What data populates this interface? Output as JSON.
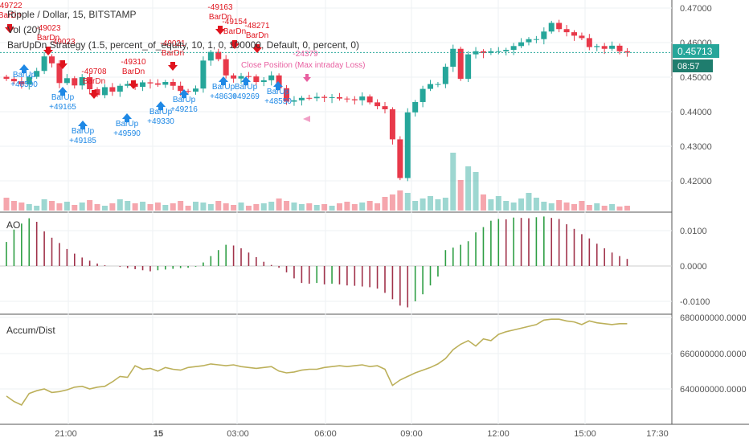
{
  "header": {
    "symbol": "Ripple / Dollar, 15, BITSTAMP",
    "vol": "Vol (20)",
    "strategy": "BarUpDn Strategy (1.5, percent_of_equity, 10, 1, 0, 100000, Default, 0, percent, 0)"
  },
  "price_axis": {
    "labels": [
      "0.47000",
      "0.46000",
      "0.45000",
      "0.44000",
      "0.43000",
      "0.42000"
    ]
  },
  "last_price": {
    "value": "0.45713",
    "countdown": "08:57"
  },
  "ao": {
    "title": "AO",
    "labels": [
      "0.0100",
      "0.0000",
      "-0.0100"
    ]
  },
  "ad": {
    "title": "Accum/Dist",
    "labels": [
      "680000000.0000",
      "660000000.0000",
      "640000000.0000"
    ]
  },
  "time_axis": {
    "labels": [
      "21:00",
      "15",
      "03:00",
      "06:00",
      "09:00",
      "12:00",
      "15:00",
      "17:30"
    ]
  },
  "colors": {
    "up": "#26a69a",
    "up_bright": "#2e9e44",
    "down": "#e8394a",
    "ad_line": "#bcb05a",
    "signal_up": "#1e88e5",
    "signal_dn": "#e0141e",
    "close_pos": "#e85fa0"
  },
  "signals": [
    {
      "kind": "dn",
      "lines": [
        "-49722",
        "BarDn"
      ]
    },
    {
      "kind": "dn",
      "lines": [
        "-49023",
        "BarDn"
      ]
    },
    {
      "kind": "dn",
      "lines": [
        "-49023"
      ]
    },
    {
      "kind": "dn",
      "lines": [
        "-49708",
        "BarDn"
      ]
    },
    {
      "kind": "dn",
      "lines": [
        "-49310",
        "BarDn"
      ]
    },
    {
      "kind": "dn",
      "lines": [
        "-49021",
        "BarDn"
      ]
    },
    {
      "kind": "dn",
      "lines": [
        "-49163",
        "BarDn"
      ]
    },
    {
      "kind": "dn",
      "lines": [
        "-49154",
        "BarDn"
      ]
    },
    {
      "kind": "dn",
      "lines": [
        "-48271",
        "BarDn"
      ]
    },
    {
      "kind": "up",
      "lines": [
        "BarUp",
        "+48590"
      ]
    },
    {
      "kind": "up",
      "lines": [
        "BarUp",
        "+49165"
      ]
    },
    {
      "kind": "up",
      "lines": [
        "BarUp",
        "+49185"
      ]
    },
    {
      "kind": "up",
      "lines": [
        "BarUp",
        "+49590"
      ]
    },
    {
      "kind": "up",
      "lines": [
        "BarUp",
        "+49330"
      ]
    },
    {
      "kind": "up",
      "lines": [
        "BarUp",
        "+49216"
      ]
    },
    {
      "kind": "up",
      "lines": [
        "BarUp",
        "+48630"
      ]
    },
    {
      "kind": "up",
      "lines": [
        "BarUp",
        "+49269"
      ]
    },
    {
      "kind": "up",
      "lines": [
        "BarUp",
        "+48550"
      ]
    },
    {
      "kind": "close",
      "lines": [
        "-24379",
        "Close Position (Max intraday Loss)"
      ]
    }
  ],
  "chart_data": [
    {
      "type": "line",
      "title": "Ripple / Dollar, 15, BITSTAMP",
      "xlabel": "",
      "ylabel": "",
      "ylim": [
        0.414,
        0.4705
      ],
      "x_ticks": [
        "21:00",
        "15",
        "03:00",
        "06:00",
        "09:00",
        "12:00",
        "15:00",
        "17:30"
      ],
      "series": [
        {
          "values": [
            0.4495,
            0.4488,
            0.4479,
            0.4501,
            0.4518,
            0.456,
            0.454,
            0.4483,
            0.4497,
            0.4476,
            0.45,
            0.4465,
            0.4448,
            0.4471,
            0.4458,
            0.4475,
            0.448,
            0.4472,
            0.4485,
            0.4482,
            0.4478,
            0.4486,
            0.4475,
            0.446,
            0.4458,
            0.4467,
            0.4548,
            0.4573,
            0.4552,
            0.4505,
            0.4496,
            0.4503,
            0.4502,
            0.4486,
            0.4491,
            0.4505,
            0.4468,
            0.4429,
            0.4433,
            0.444,
            0.4439,
            0.4443,
            0.444,
            0.4442,
            0.4438,
            0.4436,
            0.4433,
            0.4444,
            0.4427,
            0.4416,
            0.4407,
            0.432,
            0.4208,
            0.4398,
            0.4428,
            0.4466,
            0.448,
            0.448,
            0.453,
            0.4582,
            0.4495,
            0.4566,
            0.4575,
            0.457,
            0.4575,
            0.4575,
            0.4579,
            0.459,
            0.4601,
            0.461,
            0.461,
            0.4632,
            0.4657,
            0.4639,
            0.463,
            0.462,
            0.4613,
            0.4587,
            0.459,
            0.4582,
            0.4591,
            0.4575,
            0.4571
          ]
        }
      ]
    },
    {
      "type": "bar",
      "title": "AO",
      "xlabel": "",
      "ylabel": "",
      "ylim": [
        -0.0125,
        0.0155
      ],
      "series": [
        {
          "values": [
            0.0068,
            0.0103,
            0.012,
            0.0135,
            0.0125,
            0.0098,
            0.008,
            0.0065,
            0.0048,
            0.0035,
            0.0024,
            0.0015,
            0.0007,
            0.0002,
            0.0,
            -0.0002,
            -0.0006,
            -0.0009,
            -0.0012,
            -0.0015,
            -0.0012,
            -0.001,
            -0.0008,
            -0.0006,
            -0.0005,
            -0.0002,
            0.001,
            0.0028,
            0.0045,
            0.006,
            0.0058,
            0.005,
            0.0038,
            0.0025,
            0.0012,
            0.0003,
            -0.0005,
            -0.0018,
            -0.0035,
            -0.0048,
            -0.005,
            -0.0048,
            -0.0052,
            -0.005,
            -0.0052,
            -0.0055,
            -0.0056,
            -0.0058,
            -0.006,
            -0.0064,
            -0.0076,
            -0.0094,
            -0.0112,
            -0.0117,
            -0.01,
            -0.008,
            -0.0055,
            -0.003,
            0.0045,
            0.0052,
            0.006,
            0.007,
            0.0095,
            0.011,
            0.0128,
            0.0133,
            0.0132,
            0.0137,
            0.0136,
            0.0135,
            0.0138,
            0.014,
            0.0136,
            0.0133,
            0.0118,
            0.0105,
            0.009,
            0.0078,
            0.0063,
            0.005,
            0.0038,
            0.0028,
            0.002
          ]
        }
      ]
    },
    {
      "type": "line",
      "title": "Accum/Dist",
      "xlabel": "",
      "ylabel": "",
      "ylim": [
        630000000,
        682000000
      ],
      "series": [
        {
          "values": [
            636000000,
            633000000,
            631000000,
            637500000,
            639000000,
            640000000,
            638000000,
            638500000,
            639500000,
            641000000,
            641500000,
            640000000,
            641000000,
            641500000,
            644000000,
            647000000,
            646500000,
            653000000,
            651000000,
            651500000,
            650000000,
            652000000,
            651000000,
            650500000,
            652000000,
            652500000,
            653000000,
            654000000,
            653500000,
            653000000,
            653500000,
            652500000,
            652000000,
            651500000,
            652000000,
            652500000,
            650000000,
            649000000,
            649500000,
            650500000,
            651000000,
            651000000,
            652000000,
            652500000,
            653000000,
            652500000,
            653000000,
            653500000,
            652500000,
            653000000,
            651000000,
            642000000,
            645000000,
            647000000,
            649000000,
            650500000,
            652000000,
            654000000,
            657000000,
            662000000,
            665000000,
            667000000,
            664000000,
            668000000,
            667000000,
            670500000,
            672000000,
            673000000,
            674000000,
            675000000,
            676000000,
            678500000,
            679000000,
            679000000,
            678000000,
            677500000,
            676000000,
            678000000,
            677000000,
            676500000,
            676000000,
            676500000,
            676500000
          ]
        }
      ]
    }
  ]
}
